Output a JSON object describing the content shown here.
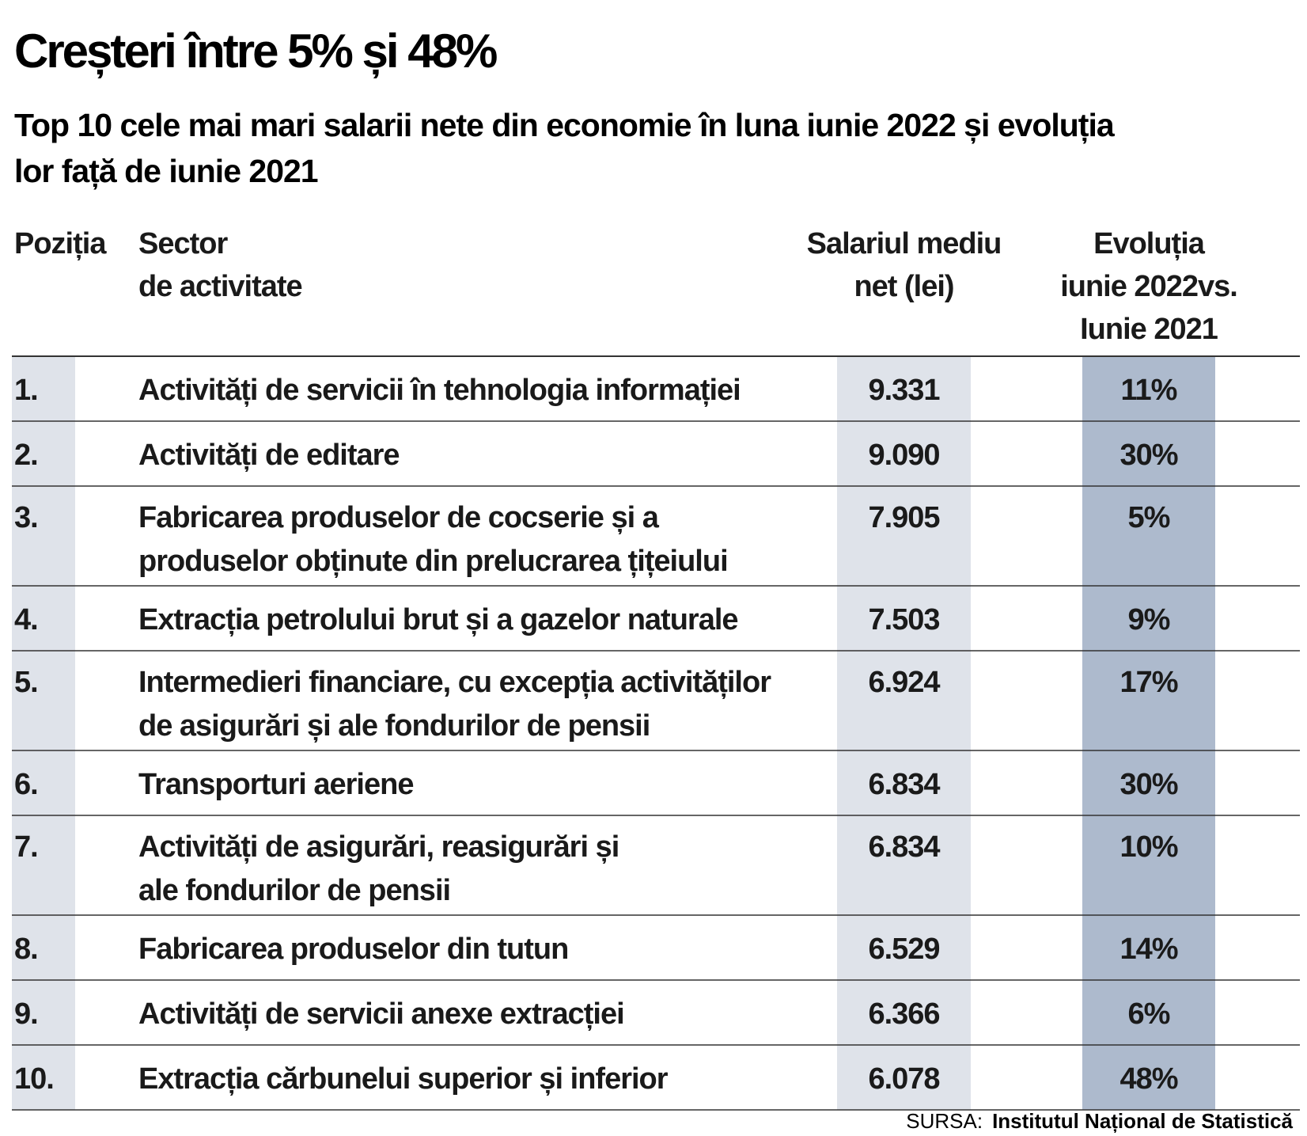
{
  "title": "Creșteri între 5% și 48%",
  "subtitle_lines": [
    "Top 10 cele mai mari salarii nete din economie în luna iunie 2022 și evoluția",
    "lor față de iunie 2021"
  ],
  "headers": {
    "position": [
      "Poziția"
    ],
    "sector": [
      "Sector",
      "de activitate"
    ],
    "salary": [
      "Salariul mediu",
      "net (lei)"
    ],
    "evolution": [
      "Evoluția",
      "iunie 2022vs.",
      "Iunie 2021"
    ]
  },
  "source": {
    "label": "SURSA:",
    "name": "Institutul Național de Statistică"
  },
  "colors": {
    "text": "#1a1a1a",
    "position_column_bg": "#dfe3ea",
    "salary_column_bg": "#dfe3ea",
    "evolution_column_bg": "#adbacd",
    "rule": "#333333"
  },
  "chart_data": {
    "type": "table",
    "columns": [
      "Poziția",
      "Sector de activitate",
      "Salariul mediu net (lei)",
      "Evoluția iunie 2022vs. Iunie 2021"
    ],
    "rows": [
      {
        "position": "1.",
        "sector": [
          "Activități de servicii în tehnologia informației"
        ],
        "salary": "9.331",
        "evolution": "11%"
      },
      {
        "position": "2.",
        "sector": [
          "Activități de editare"
        ],
        "salary": "9.090",
        "evolution": "30%"
      },
      {
        "position": "3.",
        "sector": [
          "Fabricarea produselor de cocserie și a",
          "produselor obținute din prelucrarea țițeiului"
        ],
        "salary": "7.905",
        "evolution": "5%"
      },
      {
        "position": "4.",
        "sector": [
          "Extracția petrolului brut și a gazelor naturale"
        ],
        "salary": "7.503",
        "evolution": "9%"
      },
      {
        "position": "5.",
        "sector": [
          "Intermedieri financiare, cu excepția activităților",
          "de asigurări și ale fondurilor de pensii"
        ],
        "salary": "6.924",
        "evolution": "17%"
      },
      {
        "position": "6.",
        "sector": [
          "Transporturi aeriene"
        ],
        "salary": "6.834",
        "evolution": "30%"
      },
      {
        "position": "7.",
        "sector": [
          "Activități de asigurări, reasigurări și",
          "ale fondurilor de pensii"
        ],
        "salary": "6.834",
        "evolution": "10%"
      },
      {
        "position": "8.",
        "sector": [
          "Fabricarea produselor din tutun"
        ],
        "salary": "6.529",
        "evolution": "14%"
      },
      {
        "position": "9.",
        "sector": [
          "Activități de servicii anexe extracției"
        ],
        "salary": "6.366",
        "evolution": "6%"
      },
      {
        "position": "10.",
        "sector": [
          "Extracția cărbunelui superior și inferior"
        ],
        "salary": "6.078",
        "evolution": "48%"
      }
    ]
  }
}
